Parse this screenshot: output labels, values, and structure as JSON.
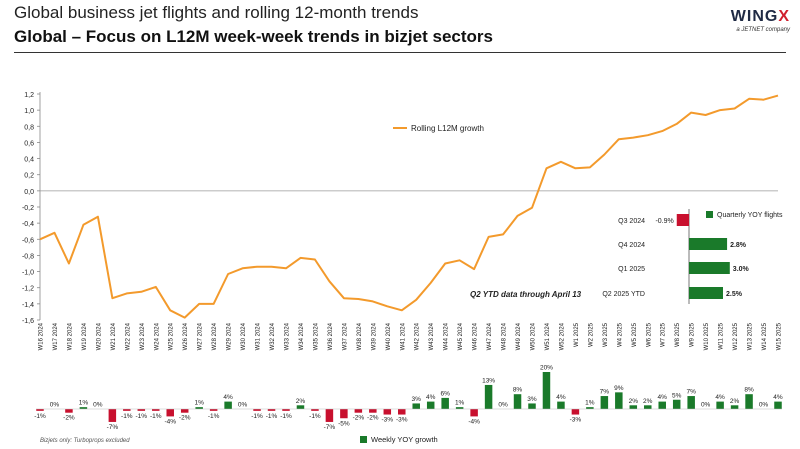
{
  "header": {
    "title": "Global business jet flights and rolling 12-month trends",
    "subtitle": "Global – Focus on L12M week-week trends in bizjet sectors"
  },
  "logo": {
    "name": "WINGX",
    "tagline": "a JETNET company"
  },
  "footnote": "Bizjets only: Turboprops excluded",
  "colors": {
    "line": "#f39a2c",
    "bar_positive": "#1a7a2a",
    "bar_negative": "#c8102e"
  },
  "chart_data": [
    {
      "type": "line",
      "name": "rolling-growth",
      "series": [
        {
          "name": "Rolling L12M growth"
        }
      ],
      "legend_position": "top-center",
      "ylim": [
        -1.6,
        1.2
      ],
      "yticks": [
        "1,2",
        "1,0",
        "0,8",
        "0,6",
        "0,4",
        "0,2",
        "0,0",
        "-0,2",
        "-0,4",
        "-0,6",
        "-0,8",
        "-1,0",
        "-1,2",
        "-1,4",
        "-1,6"
      ],
      "x": [
        "W16 2024",
        "W17 2024",
        "W18 2024",
        "W19 2024",
        "W20 2024",
        "W21 2024",
        "W22 2024",
        "W23 2024",
        "W24 2024",
        "W25 2024",
        "W26 2024",
        "W27 2024",
        "W28 2024",
        "W29 2024",
        "W30 2024",
        "W31 2024",
        "W32 2024",
        "W33 2024",
        "W34 2024",
        "W35 2024",
        "W36 2024",
        "W37 2024",
        "W38 2024",
        "W39 2024",
        "W40 2024",
        "W41 2024",
        "W42 2024",
        "W43 2024",
        "W44 2024",
        "W45 2024",
        "W46 2024",
        "W47 2024",
        "W48 2024",
        "W49 2024",
        "W50 2024",
        "W51 2024",
        "W52 2024",
        "W1 2025",
        "W2 2025",
        "W3 2025",
        "W4 2025",
        "W5 2025",
        "W6 2025",
        "W7 2025",
        "W8 2025",
        "W9 2025",
        "W10 2025",
        "W11 2025",
        "W12 2025",
        "W13 2025",
        "W14 2025",
        "W15 2025"
      ],
      "values": [
        -0.6,
        -0.52,
        -0.9,
        -0.42,
        -0.32,
        -1.33,
        -1.27,
        -1.25,
        -1.19,
        -1.48,
        -1.57,
        -1.4,
        -1.4,
        -1.03,
        -0.96,
        -0.94,
        -0.94,
        -0.96,
        -0.83,
        -0.85,
        -1.12,
        -1.33,
        -1.34,
        -1.37,
        -1.43,
        -1.48,
        -1.35,
        -1.14,
        -0.9,
        -0.86,
        -0.97,
        -0.57,
        -0.54,
        -0.31,
        -0.21,
        0.28,
        0.36,
        0.28,
        0.29,
        0.45,
        0.64,
        0.66,
        0.69,
        0.74,
        0.83,
        0.97,
        0.94,
        1.0,
        1.02,
        1.14,
        1.13,
        1.18
      ],
      "grid": false
    },
    {
      "type": "bar",
      "name": "weekly-yoy",
      "series": [
        {
          "name": "Weekly YOY growth"
        }
      ],
      "legend_position": "bottom-center",
      "values": [
        -1,
        0,
        -2,
        1,
        0,
        -7,
        -1,
        -1,
        -1,
        -4,
        -2,
        1,
        -1,
        4,
        0,
        -1,
        -1,
        -1,
        2,
        -1,
        -7,
        -5,
        -2,
        -2,
        -3,
        -3,
        3,
        4,
        6,
        1,
        -4,
        13,
        0,
        8,
        3,
        20,
        4,
        -3,
        1,
        7,
        9,
        2,
        2,
        4,
        5,
        7,
        0,
        4,
        2,
        8,
        0,
        4
      ],
      "labels": [
        "-1%",
        "0%",
        "-2%",
        "1%",
        "0%",
        "-7%",
        "-1%",
        "-1%",
        "-1%",
        "-4%",
        "-2%",
        "1%",
        "-1%",
        "4%",
        "0%",
        "-1%",
        "-1%",
        "-1%",
        "2%",
        "-1%",
        "-7%",
        "-5%",
        "-2%",
        "-2%",
        "-3%",
        "-3%",
        "3%",
        "4%",
        "6%",
        "1%",
        "-4%",
        "13%",
        "0%",
        "8%",
        "3%",
        "20%",
        "4%",
        "-3%",
        "1%",
        "7%",
        "9%",
        "2%",
        "2%",
        "4%",
        "5%",
        "7%",
        "0%",
        "4%",
        "2%",
        "8%",
        "0%",
        "4%"
      ]
    },
    {
      "type": "bar",
      "name": "quarterly-yoy",
      "orientation": "horizontal",
      "series": [
        {
          "name": "Quarterly YOY flights"
        }
      ],
      "legend_position": "top-right",
      "categories": [
        "Q3 2024",
        "Q4 2024",
        "Q1 2025",
        "Q2 2025 YTD"
      ],
      "values": [
        -0.9,
        2.8,
        3.0,
        2.5
      ],
      "labels": [
        "-0.9%",
        "2.8%",
        "3.0%",
        "2.5%"
      ],
      "annotation": "Q2 YTD data through April 13"
    }
  ]
}
